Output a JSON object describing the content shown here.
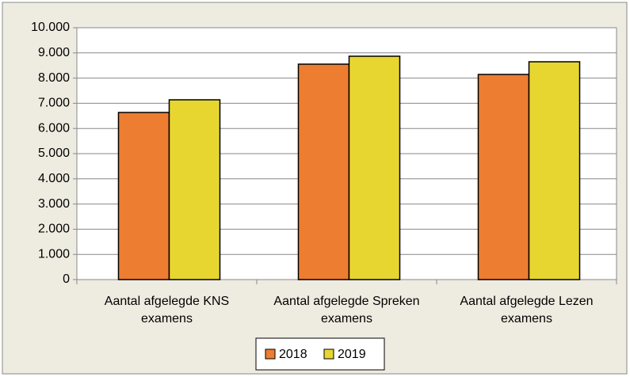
{
  "chart_data": {
    "type": "bar",
    "categories": [
      "Aantal afgelegde KNS examens",
      "Aantal afgelegde Spreken examens",
      "Aantal afgelegde Lezen examens"
    ],
    "series": [
      {
        "name": "2018",
        "color": "#ED7D31",
        "values": [
          6635,
          8553,
          8145
        ]
      },
      {
        "name": "2019",
        "color": "#E8D630",
        "values": [
          7138,
          8868,
          8648
        ]
      }
    ],
    "ylim": [
      0,
      10000
    ],
    "yticks": [
      0,
      {
        "value": 1000,
        "label": "1.000"
      },
      {
        "value": 2000,
        "label": "2.000"
      },
      {
        "value": 3000,
        "label": "3.000"
      },
      {
        "value": 4000,
        "label": "4.000"
      },
      {
        "value": 5000,
        "label": "5.000"
      },
      {
        "value": 6000,
        "label": "6.000"
      },
      {
        "value": 7000,
        "label": "7.000"
      },
      {
        "value": 8000,
        "label": "8.000"
      },
      {
        "value": 9000,
        "label": "9.000"
      },
      {
        "value": 10000,
        "label": "10.000"
      }
    ],
    "grid": true,
    "legend": "bottom"
  }
}
